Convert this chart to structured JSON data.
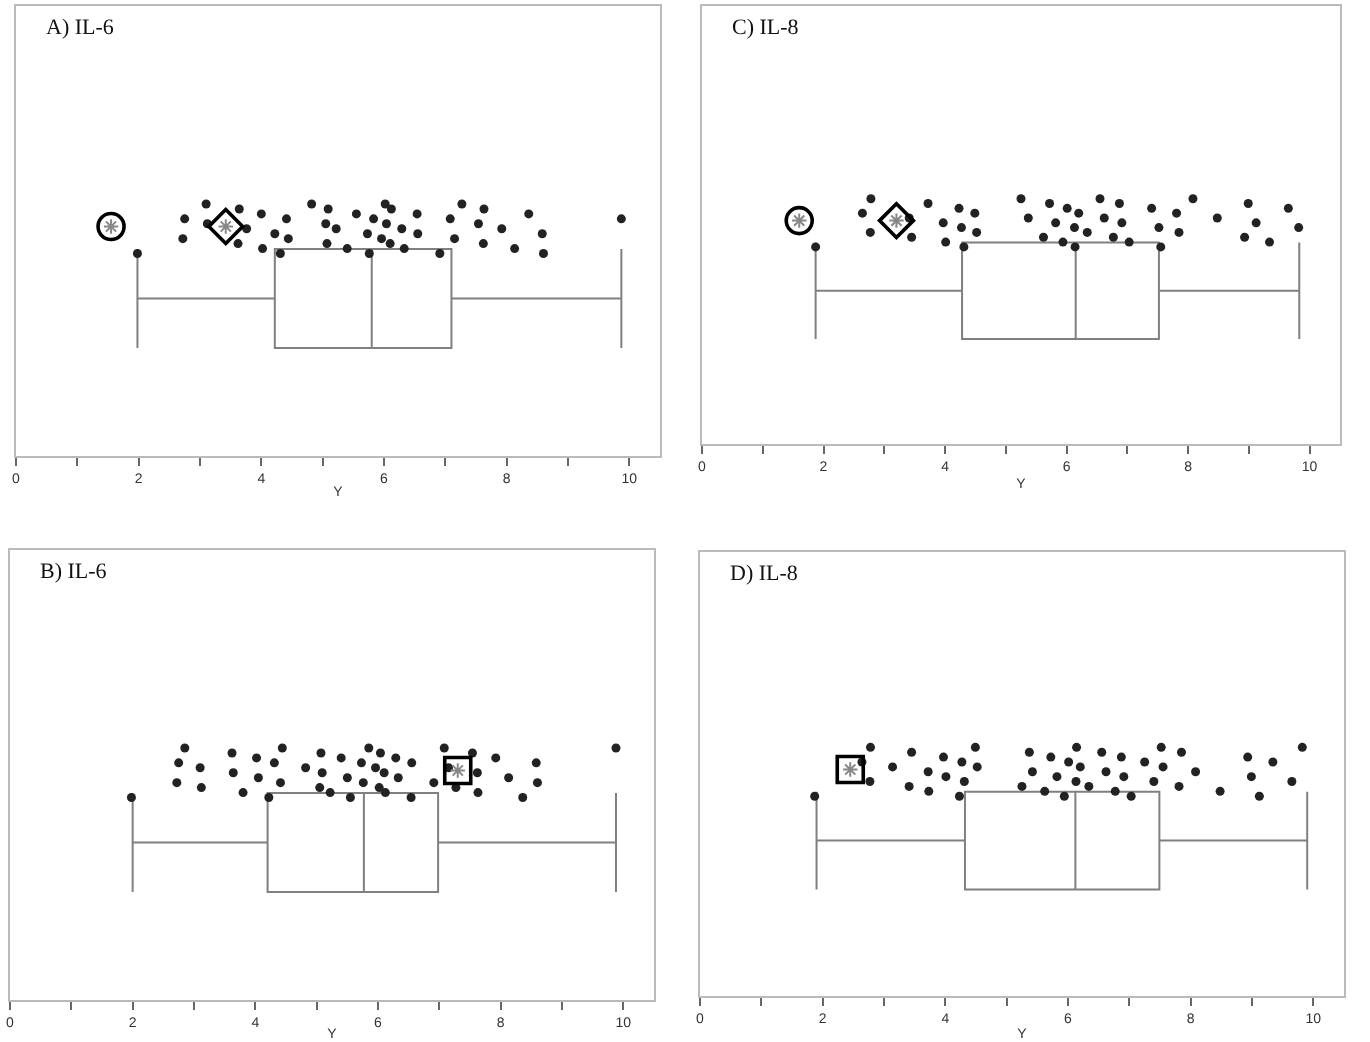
{
  "chart_data": [
    {
      "type": "box",
      "orientation": "horizontal",
      "title": "A) IL-6",
      "xlabel": "Y",
      "color": "#808080",
      "categories": [
        null
      ],
      "boxes": [
        {
          "low": 1.98,
          "q1": 4.22,
          "median": 5.8,
          "q3": 7.1,
          "high": 9.87
        }
      ],
      "series": [
        {
          "type": "scatter",
          "marker": "circle",
          "color": "#222222",
          "x": [
            null,
            null,
            null,
            null,
            null,
            null,
            null,
            null,
            null,
            null,
            null,
            null,
            null,
            null,
            null,
            null,
            null,
            null,
            null,
            null,
            null,
            null,
            null,
            null,
            null,
            null,
            null,
            null,
            null,
            null,
            null,
            null,
            null,
            null,
            null,
            null,
            null,
            null,
            null,
            null,
            null,
            null,
            null,
            null,
            null,
            null
          ],
          "values": [
            1.98,
            2.75,
            2.72,
            3.1,
            3.12,
            3.62,
            3.64,
            3.76,
            4.02,
            4.0,
            4.22,
            4.31,
            4.41,
            4.44,
            4.82,
            5.05,
            5.07,
            5.09,
            5.22,
            5.4,
            5.55,
            5.73,
            5.76,
            5.83,
            5.96,
            6.02,
            6.04,
            6.1,
            6.12,
            6.29,
            6.33,
            6.54,
            6.55,
            6.91,
            7.08,
            7.15,
            7.27,
            7.54,
            7.62,
            7.63,
            7.92,
            8.13,
            8.36,
            8.58,
            8.6,
            9.87
          ]
        },
        {
          "type": "scatter",
          "marker": "circle",
          "color": "#000000",
          "x": [
            null
          ],
          "values": [
            1.55
          ]
        },
        {
          "type": "scatter",
          "marker": "diamond",
          "color": "#000000",
          "x": [
            null
          ],
          "values": [
            3.42
          ]
        }
      ],
      "xlim": [
        0,
        10.5
      ],
      "xticks": [
        0,
        {
          "value": 1,
          "label": null
        },
        2,
        {
          "value": 3,
          "label": null
        },
        4,
        {
          "value": 5,
          "label": null
        },
        6,
        {
          "value": 7,
          "label": null
        },
        8,
        {
          "value": 9,
          "label": null
        },
        10
      ],
      "tick_labels": "x",
      "grid": false
    },
    {
      "type": "box",
      "orientation": "horizontal",
      "title": "C) IL-8",
      "xlabel": "Y",
      "color": "#808080",
      "categories": [
        null
      ],
      "boxes": [
        {
          "low": 1.87,
          "q1": 4.28,
          "median": 6.15,
          "q3": 7.52,
          "high": 9.83
        }
      ],
      "series": [
        {
          "type": "scatter",
          "marker": "circle",
          "color": "#222222",
          "x": [
            null,
            null,
            null,
            null,
            null,
            null,
            null,
            null,
            null,
            null,
            null,
            null,
            null,
            null,
            null,
            null,
            null,
            null,
            null,
            null,
            null,
            null,
            null,
            null,
            null,
            null,
            null,
            null,
            null,
            null,
            null,
            null,
            null,
            null,
            null,
            null,
            null,
            null,
            null,
            null,
            null,
            null,
            null,
            null
          ],
          "values": [
            1.87,
            2.64,
            2.77,
            2.78,
            3.41,
            3.45,
            3.72,
            3.97,
            4.01,
            4.23,
            4.27,
            4.31,
            4.49,
            4.52,
            5.25,
            5.37,
            5.62,
            5.72,
            5.82,
            5.94,
            6.01,
            6.13,
            6.14,
            6.2,
            6.34,
            6.55,
            6.62,
            6.77,
            6.87,
            6.91,
            7.03,
            7.4,
            7.52,
            7.55,
            7.81,
            7.85,
            8.08,
            8.48,
            8.93,
            8.99,
            9.12,
            9.34,
            9.65,
            9.82
          ]
        },
        {
          "type": "scatter",
          "marker": "circle",
          "color": "#000000",
          "x": [
            null
          ],
          "values": [
            1.6
          ]
        },
        {
          "type": "scatter",
          "marker": "diamond",
          "color": "#000000",
          "x": [
            null
          ],
          "values": [
            3.2
          ]
        }
      ],
      "xlim": [
        0,
        10.5
      ],
      "xticks": [
        0,
        {
          "value": 1,
          "label": null
        },
        2,
        {
          "value": 3,
          "label": null
        },
        4,
        {
          "value": 5,
          "label": null
        },
        6,
        {
          "value": 7,
          "label": null
        },
        8,
        {
          "value": 9,
          "label": null
        },
        10
      ],
      "tick_labels": "x",
      "grid": false
    },
    {
      "type": "box",
      "orientation": "horizontal",
      "title": "B) IL-6",
      "xlabel": "Y",
      "color": "#808080",
      "categories": [
        null
      ],
      "boxes": [
        {
          "low": 2.0,
          "q1": 4.2,
          "median": 5.77,
          "q3": 6.98,
          "high": 9.88
        }
      ],
      "series": [
        {
          "type": "scatter",
          "marker": "circle",
          "color": "#222222",
          "x": [
            null,
            null,
            null,
            null,
            null,
            null,
            null,
            null,
            null,
            null,
            null,
            null,
            null,
            null,
            null,
            null,
            null,
            null,
            null,
            null,
            null,
            null,
            null,
            null,
            null,
            null,
            null,
            null,
            null,
            null,
            null,
            null,
            null,
            null,
            null,
            null,
            null,
            null,
            null,
            null,
            null,
            null,
            null,
            null,
            null,
            null,
            null,
            null
          ],
          "values": [
            1.98,
            2.75,
            2.72,
            2.85,
            3.1,
            3.12,
            3.62,
            3.64,
            3.8,
            4.02,
            4.05,
            4.22,
            4.31,
            4.41,
            4.44,
            4.82,
            5.05,
            5.07,
            5.09,
            5.22,
            5.4,
            5.5,
            5.55,
            5.73,
            5.76,
            5.85,
            5.96,
            6.02,
            6.04,
            6.1,
            6.12,
            6.29,
            6.33,
            6.54,
            6.55,
            6.91,
            7.08,
            7.15,
            7.27,
            7.54,
            7.62,
            7.63,
            7.92,
            8.13,
            8.36,
            8.58,
            8.6,
            9.88
          ]
        },
        {
          "type": "scatter",
          "marker": "square",
          "color": "#000000",
          "x": [
            null
          ],
          "values": [
            7.3
          ]
        }
      ],
      "xlim": [
        0,
        10.5
      ],
      "xticks": [
        0,
        {
          "value": 1,
          "label": null
        },
        2,
        {
          "value": 3,
          "label": null
        },
        4,
        {
          "value": 5,
          "label": null
        },
        6,
        {
          "value": 7,
          "label": null
        },
        8,
        {
          "value": 9,
          "label": null
        },
        10
      ],
      "tick_labels": "x",
      "grid": false
    },
    {
      "type": "box",
      "orientation": "horizontal",
      "title": "D) IL-8",
      "xlabel": "Y",
      "color": "#808080",
      "categories": [
        null
      ],
      "boxes": [
        {
          "low": 1.9,
          "q1": 4.32,
          "median": 6.12,
          "q3": 7.49,
          "high": 9.9
        }
      ],
      "series": [
        {
          "type": "scatter",
          "marker": "circle",
          "color": "#222222",
          "x": [
            null,
            null,
            null,
            null,
            null,
            null,
            null,
            null,
            null,
            null,
            null,
            null,
            null,
            null,
            null,
            null,
            null,
            null,
            null,
            null,
            null,
            null,
            null,
            null,
            null,
            null,
            null,
            null,
            null,
            null,
            null,
            null,
            null,
            null,
            null,
            null,
            null,
            null,
            null,
            null,
            null,
            null,
            null,
            null,
            null,
            null,
            null,
            null
          ],
          "values": [
            1.87,
            2.64,
            2.77,
            2.78,
            3.14,
            3.41,
            3.45,
            3.72,
            3.73,
            3.97,
            4.01,
            4.23,
            4.27,
            4.31,
            4.49,
            4.52,
            5.25,
            5.37,
            5.42,
            5.62,
            5.72,
            5.82,
            5.94,
            6.01,
            6.13,
            6.14,
            6.2,
            6.34,
            6.55,
            6.62,
            6.77,
            6.87,
            6.91,
            7.03,
            7.25,
            7.4,
            7.52,
            7.55,
            7.81,
            7.85,
            8.08,
            8.48,
            8.93,
            8.99,
            9.12,
            9.34,
            9.65,
            9.82
          ]
        },
        {
          "type": "scatter",
          "marker": "square",
          "color": "#000000",
          "x": [
            null
          ],
          "values": [
            2.45
          ]
        }
      ],
      "xlim": [
        0,
        10.5
      ],
      "xticks": [
        0,
        {
          "value": 1,
          "label": null
        },
        2,
        {
          "value": 3,
          "label": null
        },
        4,
        {
          "value": 5,
          "label": null
        },
        6,
        {
          "value": 7,
          "label": null
        },
        8,
        {
          "value": 9,
          "label": null
        },
        10
      ],
      "tick_labels": "x",
      "grid": false
    }
  ]
}
